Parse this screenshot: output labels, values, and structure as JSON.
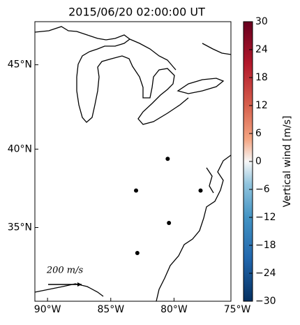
{
  "chart_data": {
    "type": "scatter",
    "title": "2015/06/20 02:00:00 UT",
    "projection": "mercator",
    "xlim": [
      -91,
      -75.5
    ],
    "ylim": [
      30,
      47.4
    ],
    "xticks": [
      {
        "value": -90,
        "label": "90°W"
      },
      {
        "value": -85,
        "label": "85°W"
      },
      {
        "value": -80,
        "label": "80°W"
      },
      {
        "value": -75,
        "label": "75°W"
      }
    ],
    "yticks": [
      {
        "value": 35,
        "label": "35°N"
      },
      {
        "value": 40,
        "label": "40°N"
      },
      {
        "value": 45,
        "label": "45°N"
      }
    ],
    "x": [
      -80.5,
      -83.0,
      -77.9,
      -80.4,
      -82.9
    ],
    "series": [
      {
        "color": "#000000",
        "values": [
          39.4,
          37.4,
          37.4,
          35.3,
          33.3
        ]
      }
    ],
    "scale_key": "200 m/s",
    "colorbar": {
      "label": "Vertical wind [m/s]",
      "colormap": "RdBu_r",
      "clim": [
        -30,
        30
      ],
      "ticks": [
        {
          "value": -30,
          "label": "−30"
        },
        {
          "value": -24,
          "label": "−24"
        },
        {
          "value": -18,
          "label": "−18"
        },
        {
          "value": -12,
          "label": "−12"
        },
        {
          "value": -6,
          "label": "−6"
        },
        0,
        6,
        12,
        18,
        24,
        30
      ]
    }
  }
}
